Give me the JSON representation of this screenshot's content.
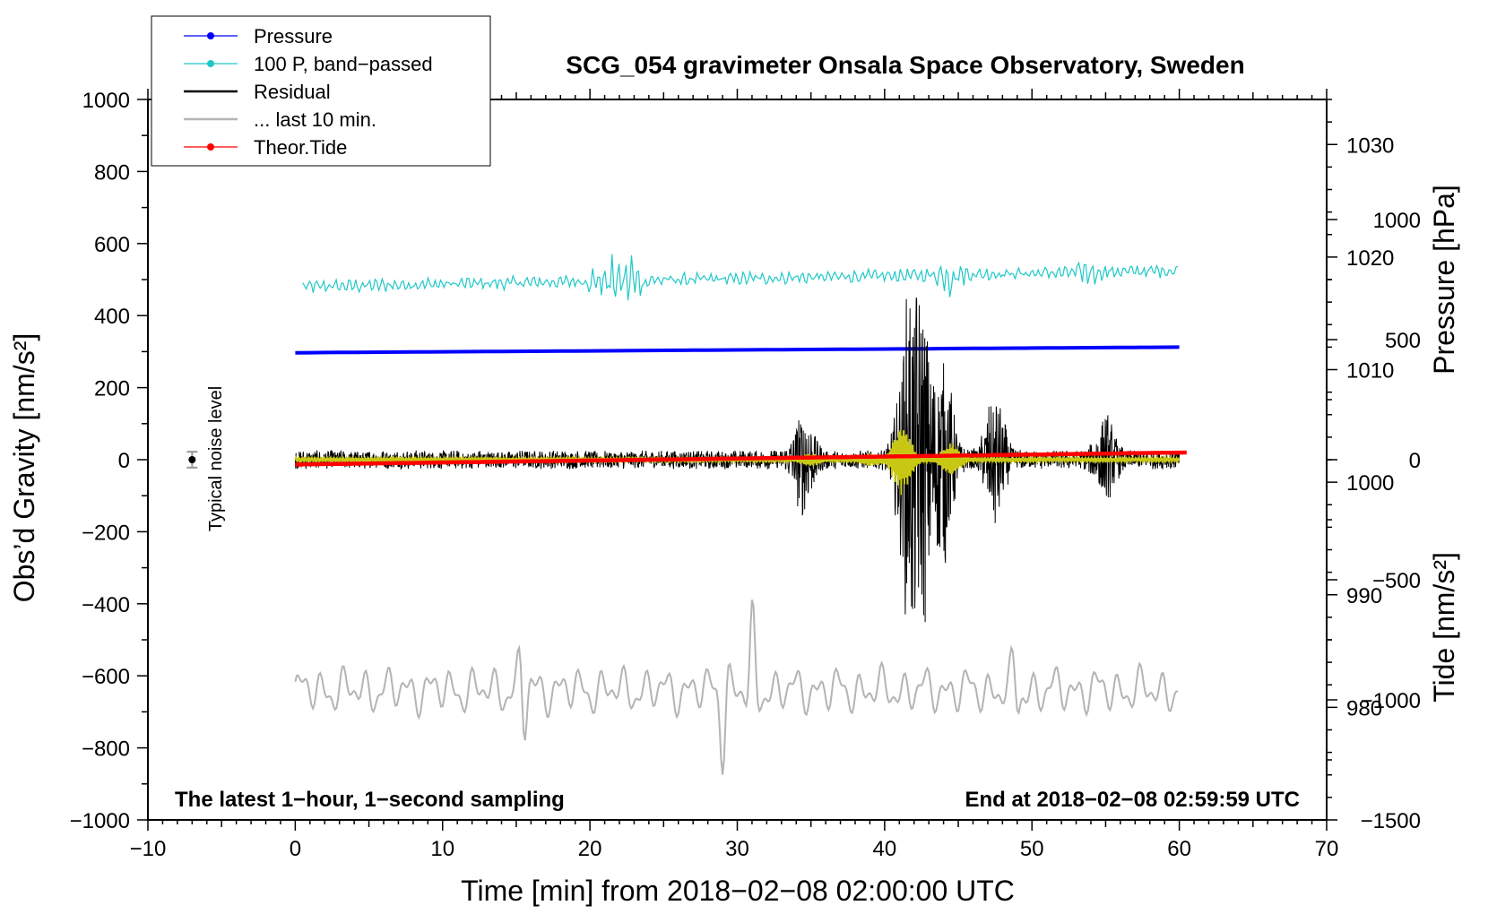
{
  "chart_data": {
    "type": "line",
    "title": "SCG_054 gravimeter Onsala Space Observatory, Sweden",
    "xlabel": "Time [min] from 2018−02−08 02:00:00 UTC",
    "ylabel_left": "Obs’d Gravity [nm/s²]",
    "ylabel_pressure": "Pressure [hPa]",
    "ylabel_tide": "Tide [nm/s²]",
    "xlim": [
      -10,
      70
    ],
    "ylim_left": [
      -1000,
      1000
    ],
    "pressure_range": [
      970,
      1034
    ],
    "tide_range": [
      -1500,
      1500
    ],
    "x_ticks": [
      "−10",
      "0",
      "10",
      "20",
      "30",
      "40",
      "50",
      "60",
      "70"
    ],
    "x_tick_values": [
      -10,
      0,
      10,
      20,
      30,
      40,
      50,
      60,
      70
    ],
    "y_left_ticks": [
      "1000",
      "800",
      "600",
      "400",
      "200",
      "0",
      "−200",
      "−400",
      "−600",
      "−800",
      "−1000"
    ],
    "y_left_tick_values": [
      1000,
      800,
      600,
      400,
      200,
      0,
      -200,
      -400,
      -600,
      -800,
      -1000
    ],
    "pressure_ticks": [
      "1030",
      "1020",
      "1010",
      "1000",
      "990",
      "980"
    ],
    "pressure_tick_values": [
      1030,
      1020,
      1010,
      1000,
      990,
      980
    ],
    "tide_ticks": [
      "1000",
      "500",
      "0",
      "−500",
      "−1000",
      "−1500"
    ],
    "tide_tick_values": [
      1000,
      500,
      0,
      -500,
      -1000,
      -1500
    ],
    "annotations": {
      "left": "The latest 1−hour, 1−second sampling",
      "right": "End at 2018−02−08 02:59:59 UTC",
      "noise": "Typical noise level"
    },
    "noise_marker": {
      "x": -7,
      "y": 0,
      "err": 22
    },
    "legend": [
      {
        "label": "Pressure",
        "color": "#0000ff",
        "marker": true
      },
      {
        "label": "100 P, band−passed",
        "color": "#20c8c8",
        "marker": true
      },
      {
        "label": "Residual",
        "color": "#000000",
        "marker": false
      },
      {
        "label": "... last 10 min.",
        "color": "#b4b4b4",
        "marker": false
      },
      {
        "label": "Theor.Tide",
        "color": "#ff0000",
        "marker": true
      }
    ],
    "series": [
      {
        "name": "Pressure",
        "color": "#0000ff",
        "axis": "pressure",
        "x": [
          0,
          30,
          60
        ],
        "values": [
          1011.5,
          1011.8,
          1012.0
        ]
      },
      {
        "name": "100 P, band−passed",
        "color": "#20c8c8",
        "axis": "left",
        "center_start": 480,
        "center_end": 525,
        "amplitude": 18,
        "bursts": [
          {
            "x": 21,
            "amp": 70
          },
          {
            "x": 23,
            "amp": 70
          },
          {
            "x": 44.5,
            "amp": 45
          },
          {
            "x": 54,
            "amp": 25
          }
        ]
      },
      {
        "name": "Residual",
        "color": "#000000",
        "axis": "left",
        "center": 0,
        "amplitude": 30,
        "bursts": [
          {
            "x": 34.5,
            "amp": 160
          },
          {
            "x": 41.5,
            "amp": 400
          },
          {
            "x": 42.5,
            "amp": 480
          },
          {
            "x": 44,
            "amp": 320
          },
          {
            "x": 47.5,
            "amp": 200
          },
          {
            "x": 55,
            "amp": 120
          }
        ]
      },
      {
        "name": "... last 10 min.",
        "color": "#b4b4b4",
        "axis": "left",
        "center": -640,
        "amplitude": 55,
        "spikes": [
          {
            "x": 15.5,
            "amp": 130
          },
          {
            "x": 29,
            "amp": 140
          },
          {
            "x": 31,
            "amp": 140
          },
          {
            "x": 49,
            "amp": 90
          }
        ]
      },
      {
        "name": "Theor.Tide",
        "color": "#ff0000",
        "axis": "tide",
        "x": [
          0,
          60.5
        ],
        "values": [
          -20,
          30
        ]
      },
      {
        "name": "Residual (filtered)",
        "color": "#c8c814",
        "axis": "left",
        "center": 0,
        "amplitude": 4,
        "bursts": [
          {
            "x": 41.2,
            "amp": 95
          },
          {
            "x": 44.5,
            "amp": 45
          },
          {
            "x": 35,
            "amp": 15
          },
          {
            "x": 39,
            "amp": 15
          }
        ]
      }
    ]
  }
}
